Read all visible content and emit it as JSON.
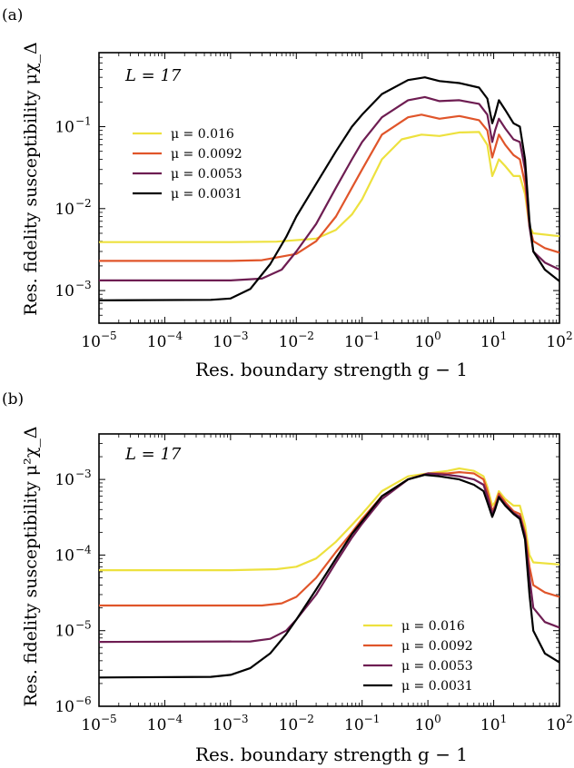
{
  "figure": {
    "panels": [
      {
        "panel_label": "(a)",
        "annotation": "L = 17",
        "ylabel": "Res. fidelity susceptibility μχ_Δ",
        "xlabel": "Res. boundary strength g − 1",
        "legend_position": "upper-left"
      },
      {
        "panel_label": "(b)",
        "annotation": "L = 17",
        "ylabel": "Res. fidelity susceptibility μ²χ_Δ",
        "xlabel": "Res. boundary strength g − 1",
        "legend_position": "lower-right"
      }
    ]
  },
  "chart_data": [
    {
      "type": "line",
      "xscale": "log",
      "yscale": "log",
      "xlim": [
        1e-05,
        100
      ],
      "ylim": [
        0.0004,
        0.8
      ],
      "xticks": [
        1e-05,
        0.0001,
        0.001,
        0.01,
        0.1,
        1,
        10,
        100
      ],
      "xtick_labels": [
        {
          "base": "10",
          "exp": "−5"
        },
        {
          "base": "10",
          "exp": "−4"
        },
        {
          "base": "10",
          "exp": "−3"
        },
        {
          "base": "10",
          "exp": "−2"
        },
        {
          "base": "10",
          "exp": "−1"
        },
        {
          "base": "10",
          "exp": "0"
        },
        {
          "base": "10",
          "exp": "1"
        },
        {
          "base": "10",
          "exp": "2"
        }
      ],
      "yticks": [
        0.001,
        0.01,
        0.1
      ],
      "ytick_labels": [
        {
          "base": "10",
          "exp": "−3"
        },
        {
          "base": "10",
          "exp": "−2"
        },
        {
          "base": "10",
          "exp": "−1"
        }
      ],
      "series": [
        {
          "name": "μ = 0.016",
          "color": "#ede13e",
          "points": [
            [
              1e-05,
              0.0039
            ],
            [
              0.001,
              0.0039
            ],
            [
              0.005,
              0.00395
            ],
            [
              0.02,
              0.0043
            ],
            [
              0.04,
              0.0055
            ],
            [
              0.07,
              0.0085
            ],
            [
              0.1,
              0.013
            ],
            [
              0.2,
              0.04
            ],
            [
              0.4,
              0.07
            ],
            [
              0.8,
              0.08
            ],
            [
              1.5,
              0.077
            ],
            [
              3,
              0.085
            ],
            [
              6,
              0.086
            ],
            [
              8,
              0.06
            ],
            [
              9.5,
              0.025
            ],
            [
              10.5,
              0.03
            ],
            [
              12,
              0.04
            ],
            [
              15,
              0.033
            ],
            [
              20,
              0.025
            ],
            [
              25,
              0.025
            ],
            [
              30,
              0.015
            ],
            [
              35,
              0.006
            ],
            [
              40,
              0.005
            ],
            [
              100,
              0.0046
            ]
          ]
        },
        {
          "name": "μ = 0.0092",
          "color": "#e0552a",
          "points": [
            [
              1e-05,
              0.0023
            ],
            [
              0.001,
              0.0023
            ],
            [
              0.003,
              0.00235
            ],
            [
              0.01,
              0.0028
            ],
            [
              0.02,
              0.004
            ],
            [
              0.04,
              0.008
            ],
            [
              0.07,
              0.018
            ],
            [
              0.1,
              0.03
            ],
            [
              0.2,
              0.08
            ],
            [
              0.5,
              0.13
            ],
            [
              0.8,
              0.14
            ],
            [
              1.5,
              0.125
            ],
            [
              3,
              0.135
            ],
            [
              6,
              0.12
            ],
            [
              8,
              0.09
            ],
            [
              9.5,
              0.042
            ],
            [
              10.5,
              0.055
            ],
            [
              12,
              0.08
            ],
            [
              15,
              0.06
            ],
            [
              20,
              0.045
            ],
            [
              25,
              0.04
            ],
            [
              30,
              0.02
            ],
            [
              35,
              0.006
            ],
            [
              40,
              0.004
            ],
            [
              60,
              0.0033
            ],
            [
              100,
              0.0029
            ]
          ]
        },
        {
          "name": "μ = 0.0053",
          "color": "#6e1d52",
          "points": [
            [
              1e-05,
              0.00133
            ],
            [
              0.001,
              0.00133
            ],
            [
              0.003,
              0.0014
            ],
            [
              0.006,
              0.0018
            ],
            [
              0.01,
              0.003
            ],
            [
              0.02,
              0.0065
            ],
            [
              0.04,
              0.018
            ],
            [
              0.07,
              0.04
            ],
            [
              0.1,
              0.065
            ],
            [
              0.2,
              0.13
            ],
            [
              0.5,
              0.21
            ],
            [
              0.9,
              0.23
            ],
            [
              1.5,
              0.205
            ],
            [
              3,
              0.21
            ],
            [
              6,
              0.19
            ],
            [
              8,
              0.14
            ],
            [
              9.5,
              0.065
            ],
            [
              10.5,
              0.09
            ],
            [
              12,
              0.125
            ],
            [
              15,
              0.095
            ],
            [
              20,
              0.07
            ],
            [
              25,
              0.065
            ],
            [
              30,
              0.03
            ],
            [
              35,
              0.006
            ],
            [
              40,
              0.003
            ],
            [
              60,
              0.0022
            ],
            [
              100,
              0.0018
            ]
          ]
        },
        {
          "name": "μ = 0.0031",
          "color": "#000000",
          "points": [
            [
              1e-05,
              0.00076
            ],
            [
              0.0005,
              0.00077
            ],
            [
              0.001,
              0.0008
            ],
            [
              0.002,
              0.00105
            ],
            [
              0.004,
              0.0021
            ],
            [
              0.007,
              0.0045
            ],
            [
              0.01,
              0.008
            ],
            [
              0.02,
              0.02
            ],
            [
              0.04,
              0.05
            ],
            [
              0.07,
              0.1
            ],
            [
              0.1,
              0.14
            ],
            [
              0.2,
              0.25
            ],
            [
              0.5,
              0.37
            ],
            [
              0.9,
              0.4
            ],
            [
              1.5,
              0.36
            ],
            [
              3,
              0.34
            ],
            [
              6,
              0.3
            ],
            [
              8,
              0.22
            ],
            [
              9.5,
              0.11
            ],
            [
              10.5,
              0.14
            ],
            [
              12,
              0.21
            ],
            [
              15,
              0.16
            ],
            [
              20,
              0.11
            ],
            [
              25,
              0.1
            ],
            [
              30,
              0.04
            ],
            [
              35,
              0.007
            ],
            [
              40,
              0.003
            ],
            [
              60,
              0.0018
            ],
            [
              100,
              0.0013
            ]
          ]
        }
      ]
    },
    {
      "type": "line",
      "xscale": "log",
      "yscale": "log",
      "xlim": [
        1e-05,
        100
      ],
      "ylim": [
        1e-06,
        0.004
      ],
      "xticks": [
        1e-05,
        0.0001,
        0.001,
        0.01,
        0.1,
        1,
        10,
        100
      ],
      "xtick_labels": [
        {
          "base": "10",
          "exp": "−5"
        },
        {
          "base": "10",
          "exp": "−4"
        },
        {
          "base": "10",
          "exp": "−3"
        },
        {
          "base": "10",
          "exp": "−2"
        },
        {
          "base": "10",
          "exp": "−1"
        },
        {
          "base": "10",
          "exp": "0"
        },
        {
          "base": "10",
          "exp": "1"
        },
        {
          "base": "10",
          "exp": "2"
        }
      ],
      "yticks": [
        1e-06,
        1e-05,
        0.0001,
        0.001
      ],
      "ytick_labels": [
        {
          "base": "10",
          "exp": "−6"
        },
        {
          "base": "10",
          "exp": "−5"
        },
        {
          "base": "10",
          "exp": "−4"
        },
        {
          "base": "10",
          "exp": "−3"
        }
      ],
      "series": [
        {
          "name": "μ = 0.016",
          "color": "#ede13e",
          "points": [
            [
              1e-05,
              6.3e-05
            ],
            [
              0.001,
              6.3e-05
            ],
            [
              0.005,
              6.5e-05
            ],
            [
              0.01,
              7e-05
            ],
            [
              0.02,
              9e-05
            ],
            [
              0.04,
              0.00015
            ],
            [
              0.07,
              0.00025
            ],
            [
              0.1,
              0.00035
            ],
            [
              0.2,
              0.0007
            ],
            [
              0.5,
              0.0011
            ],
            [
              1,
              0.0012
            ],
            [
              2,
              0.0013
            ],
            [
              3,
              0.0014
            ],
            [
              5,
              0.0013
            ],
            [
              7,
              0.0011
            ],
            [
              8,
              0.0008
            ],
            [
              9.5,
              0.00045
            ],
            [
              10.5,
              0.0005
            ],
            [
              12,
              0.0007
            ],
            [
              15,
              0.00055
            ],
            [
              20,
              0.00045
            ],
            [
              25,
              0.00045
            ],
            [
              30,
              0.00025
            ],
            [
              35,
              0.0001
            ],
            [
              40,
              8e-05
            ],
            [
              100,
              7.5e-05
            ]
          ]
        },
        {
          "name": "μ = 0.0092",
          "color": "#e0552a",
          "points": [
            [
              1e-05,
              2.15e-05
            ],
            [
              0.003,
              2.15e-05
            ],
            [
              0.006,
              2.3e-05
            ],
            [
              0.01,
              2.8e-05
            ],
            [
              0.02,
              5e-05
            ],
            [
              0.04,
              0.00011
            ],
            [
              0.07,
              0.0002
            ],
            [
              0.1,
              0.0003
            ],
            [
              0.2,
              0.0006
            ],
            [
              0.5,
              0.001
            ],
            [
              1,
              0.0012
            ],
            [
              2,
              0.0012
            ],
            [
              3,
              0.00125
            ],
            [
              5,
              0.0012
            ],
            [
              7,
              0.001
            ],
            [
              8,
              0.0007
            ],
            [
              9.5,
              0.00038
            ],
            [
              10.5,
              0.00045
            ],
            [
              12,
              0.00065
            ],
            [
              15,
              0.0005
            ],
            [
              20,
              0.00038
            ],
            [
              25,
              0.00035
            ],
            [
              30,
              0.0002
            ],
            [
              35,
              7e-05
            ],
            [
              40,
              4e-05
            ],
            [
              60,
              3.2e-05
            ],
            [
              100,
              2.8e-05
            ]
          ]
        },
        {
          "name": "μ = 0.0053",
          "color": "#6e1d52",
          "points": [
            [
              1e-05,
              7.1e-06
            ],
            [
              0.002,
              7.2e-06
            ],
            [
              0.004,
              7.8e-06
            ],
            [
              0.007,
              1e-05
            ],
            [
              0.01,
              1.4e-05
            ],
            [
              0.02,
              3e-05
            ],
            [
              0.04,
              8e-05
            ],
            [
              0.07,
              0.00017
            ],
            [
              0.1,
              0.00026
            ],
            [
              0.2,
              0.00055
            ],
            [
              0.5,
              0.001
            ],
            [
              1,
              0.0012
            ],
            [
              2,
              0.00115
            ],
            [
              3,
              0.0011
            ],
            [
              5,
              0.001
            ],
            [
              7,
              0.00085
            ],
            [
              8,
              0.0006
            ],
            [
              9.5,
              0.00035
            ],
            [
              10.5,
              0.00042
            ],
            [
              12,
              0.0006
            ],
            [
              15,
              0.00047
            ],
            [
              20,
              0.00036
            ],
            [
              25,
              0.00032
            ],
            [
              30,
              0.00018
            ],
            [
              35,
              5e-05
            ],
            [
              40,
              2e-05
            ],
            [
              60,
              1.3e-05
            ],
            [
              100,
              1.1e-05
            ]
          ]
        },
        {
          "name": "μ = 0.0031",
          "color": "#000000",
          "points": [
            [
              1e-05,
              2.4e-06
            ],
            [
              0.0005,
              2.45e-06
            ],
            [
              0.001,
              2.6e-06
            ],
            [
              0.002,
              3.2e-06
            ],
            [
              0.004,
              5e-06
            ],
            [
              0.007,
              9e-06
            ],
            [
              0.01,
              1.4e-05
            ],
            [
              0.02,
              3.5e-05
            ],
            [
              0.04,
              9e-05
            ],
            [
              0.07,
              0.00019
            ],
            [
              0.1,
              0.00028
            ],
            [
              0.2,
              0.0006
            ],
            [
              0.5,
              0.001
            ],
            [
              0.9,
              0.00115
            ],
            [
              1.5,
              0.0011
            ],
            [
              3,
              0.001
            ],
            [
              5,
              0.00085
            ],
            [
              7,
              0.0007
            ],
            [
              8,
              0.0005
            ],
            [
              9.5,
              0.00032
            ],
            [
              10.5,
              0.0004
            ],
            [
              12,
              0.00058
            ],
            [
              15,
              0.00045
            ],
            [
              20,
              0.00035
            ],
            [
              25,
              0.0003
            ],
            [
              30,
              0.00016
            ],
            [
              35,
              3e-05
            ],
            [
              40,
              1e-05
            ],
            [
              60,
              5e-06
            ],
            [
              100,
              3.8e-06
            ]
          ]
        }
      ]
    }
  ]
}
